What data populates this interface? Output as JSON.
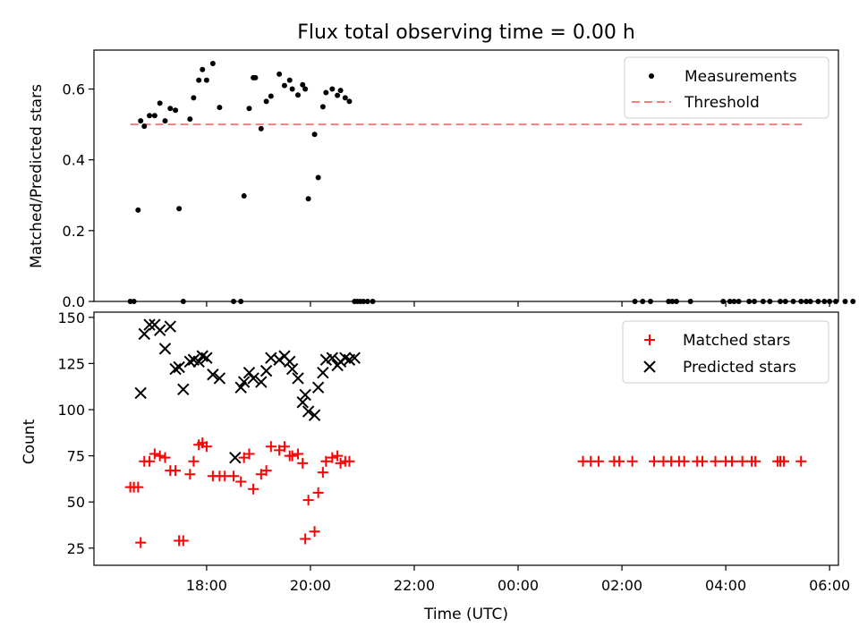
{
  "chart_data": {
    "type": "scatter",
    "title": "Flux total observing time = 0.00 h",
    "xlabel": "Time (UTC)",
    "x_unit": "hours since 17:00 UTC",
    "xlim": [
      -1.17,
      13.17
    ],
    "xticks": [
      {
        "x": 1,
        "label": "18:00"
      },
      {
        "x": 3,
        "label": "20:00"
      },
      {
        "x": 5,
        "label": "22:00"
      },
      {
        "x": 7,
        "label": "00:00"
      },
      {
        "x": 9,
        "label": "02:00"
      },
      {
        "x": 11,
        "label": "04:00"
      },
      {
        "x": 13,
        "label": "06:00"
      }
    ],
    "top": {
      "ylabel": "Matched/Predicted stars",
      "ylim": [
        0,
        0.71
      ],
      "yticks": [
        {
          "v": 0.0,
          "label": "0.0"
        },
        {
          "v": 0.2,
          "label": "0.2"
        },
        {
          "v": 0.4,
          "label": "0.4"
        },
        {
          "v": 0.6,
          "label": "0.6"
        }
      ],
      "legend": {
        "position": "top-right",
        "entries": [
          "Measurements",
          "Threshold"
        ]
      },
      "threshold": {
        "name": "Threshold",
        "value": 0.5,
        "x_start": -0.47,
        "x_end": 12.47,
        "color": "#f08080"
      },
      "measurements": {
        "name": "Measurements",
        "color": "#000000",
        "x": [
          -0.47,
          -0.4,
          -0.32,
          -0.27,
          -0.2,
          -0.1,
          0.0,
          0.1,
          0.2,
          0.3,
          0.4,
          0.47,
          0.55,
          0.68,
          0.75,
          0.85,
          0.92,
          1.0,
          1.12,
          1.25,
          1.52,
          1.66,
          1.72,
          1.82,
          1.9,
          1.94,
          2.05,
          2.15,
          2.24,
          2.4,
          2.5,
          2.6,
          2.65,
          2.76,
          2.85,
          2.9,
          2.96,
          3.08,
          3.15,
          3.24,
          3.3,
          3.42,
          3.52,
          3.58,
          3.67,
          3.75,
          3.85,
          3.9,
          3.96,
          4.02,
          4.1,
          4.2
        ],
        "y": [
          0.0,
          0.0,
          0.258,
          0.51,
          0.495,
          0.525,
          0.525,
          0.56,
          0.51,
          0.545,
          0.54,
          0.262,
          0.0,
          0.515,
          0.575,
          0.625,
          0.655,
          0.625,
          0.672,
          0.548,
          0.0,
          0.0,
          0.298,
          0.545,
          0.632,
          0.632,
          0.488,
          0.565,
          0.58,
          0.642,
          0.61,
          0.625,
          0.6,
          0.583,
          0.612,
          0.6,
          0.29,
          0.472,
          0.35,
          0.55,
          0.59,
          0.6,
          0.582,
          0.596,
          0.575,
          0.565,
          0.0,
          0.0,
          0.0,
          0.0,
          0.0,
          0.0
        ]
      },
      "zero_points_x": [
        9.25,
        9.4,
        9.55,
        9.9,
        9.97,
        10.05,
        10.32,
        10.95,
        11.08,
        11.16,
        11.25,
        11.45,
        11.55,
        11.72,
        11.85,
        12.05,
        12.15,
        12.3,
        12.45,
        12.55,
        12.63,
        12.78,
        12.9,
        13.0,
        13.12,
        13.3,
        13.45
      ]
    },
    "bottom": {
      "ylabel": "Count",
      "ylim": [
        15.7,
        152.8
      ],
      "yticks": [
        {
          "v": 25,
          "label": "25"
        },
        {
          "v": 50,
          "label": "50"
        },
        {
          "v": 75,
          "label": "75"
        },
        {
          "v": 100,
          "label": "100"
        },
        {
          "v": 125,
          "label": "125"
        },
        {
          "v": 150,
          "label": "150"
        }
      ],
      "legend": {
        "position": "top-right",
        "entries": [
          "Matched stars",
          "Predicted stars"
        ]
      },
      "matched": {
        "name": "Matched stars",
        "color": "#ff0000",
        "marker": "+",
        "x": [
          -0.47,
          -0.4,
          -0.32,
          -0.27,
          -0.2,
          -0.1,
          0.0,
          0.1,
          0.2,
          0.3,
          0.4,
          0.47,
          0.55,
          0.68,
          0.75,
          0.85,
          0.92,
          1.0,
          1.12,
          1.25,
          1.35,
          1.52,
          1.66,
          1.72,
          1.82,
          1.9,
          2.05,
          2.15,
          2.24,
          2.4,
          2.5,
          2.6,
          2.65,
          2.76,
          2.85,
          2.9,
          2.96,
          3.08,
          3.15,
          3.24,
          3.3,
          3.42,
          3.52,
          3.58,
          3.67,
          3.75,
          8.25,
          8.4,
          8.55,
          8.85,
          8.95,
          9.2,
          9.62,
          9.8,
          9.95,
          10.1,
          10.2,
          10.45,
          10.55,
          10.8,
          11.0,
          11.12,
          11.32,
          11.5,
          11.57,
          12.0,
          12.05,
          12.12,
          12.45
        ],
        "y": [
          58,
          58,
          58,
          28,
          72,
          72,
          76,
          75,
          74,
          67,
          67,
          29,
          29,
          65,
          72,
          81,
          82,
          80,
          64,
          64,
          64,
          64,
          61,
          74,
          76,
          57,
          65,
          67,
          80,
          78,
          80,
          75,
          75,
          76,
          71,
          30,
          51,
          34,
          55,
          66,
          72,
          74,
          75,
          71,
          72,
          72,
          72,
          72,
          72,
          72,
          72,
          72,
          72,
          72,
          72,
          72,
          72,
          72,
          72,
          72,
          72,
          72,
          72,
          72,
          72,
          72,
          72,
          72,
          72
        ]
      },
      "predicted": {
        "name": "Predicted stars",
        "color": "#000000",
        "marker": "x",
        "x": [
          -0.27,
          -0.2,
          -0.1,
          0.0,
          0.1,
          0.2,
          0.3,
          0.4,
          0.47,
          0.55,
          0.68,
          0.75,
          0.85,
          0.92,
          1.0,
          1.12,
          1.25,
          1.55,
          1.66,
          1.72,
          1.82,
          1.9,
          2.05,
          2.15,
          2.24,
          2.4,
          2.5,
          2.6,
          2.65,
          2.76,
          2.85,
          2.9,
          2.96,
          3.08,
          3.15,
          3.24,
          3.3,
          3.42,
          3.52,
          3.58,
          3.67,
          3.75,
          3.85
        ],
        "y": [
          109,
          141,
          146,
          146,
          143,
          133,
          145,
          122,
          123,
          111,
          126,
          127,
          126,
          129,
          128,
          119,
          117,
          74,
          112,
          115,
          120,
          117,
          115,
          121,
          128,
          127,
          129,
          126,
          122,
          117,
          104,
          108,
          99,
          97,
          112,
          120,
          127,
          128,
          124,
          126,
          128,
          127,
          128
        ]
      }
    }
  }
}
